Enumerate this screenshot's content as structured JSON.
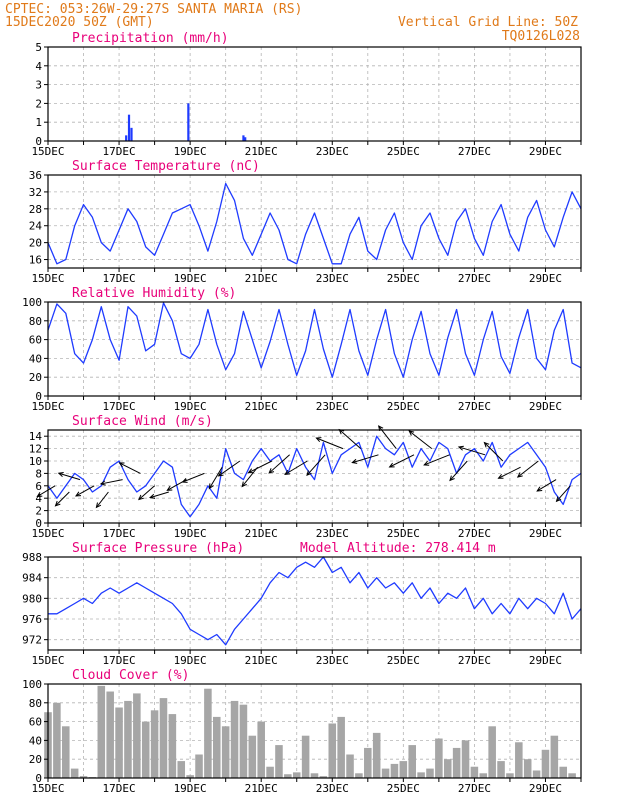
{
  "header": {
    "line1_left": "CPTEC:   053:26W-29:27S   SANTA MARIA (RS)",
    "line2_left": "15DEC2020 50Z (GMT)",
    "line1_right": "Vertical Grid Line: 50Z",
    "line2_right": "TQ0126L028"
  },
  "colors": {
    "header_text": "#e07a1a",
    "panel_title": "#e8007a",
    "series_line": "#1f3bff",
    "precip_bar": "#1f3bff",
    "cloud_bar": "#a6a6a6",
    "wind_arrow": "#000000",
    "grid": "#b5b5b5"
  },
  "x_axis": {
    "start_day": 15,
    "end_day": 30,
    "ticks": [
      "15DEC",
      "17DEC",
      "19DEC",
      "21DEC",
      "23DEC",
      "25DEC",
      "27DEC",
      "29DEC"
    ],
    "tick_days": [
      15,
      17,
      19,
      21,
      23,
      25,
      27,
      29
    ]
  },
  "chart_data": [
    {
      "id": "precip",
      "type": "bar",
      "title": "Precipitation (mm/h)",
      "ylim": [
        0,
        5
      ],
      "yticks": [
        0,
        1,
        2,
        3,
        4,
        5
      ],
      "grid": true,
      "x": [
        17.2,
        17.28,
        17.35,
        18.95,
        20.5,
        20.55
      ],
      "values": [
        0.3,
        1.4,
        0.7,
        2.0,
        0.3,
        0.2
      ]
    },
    {
      "id": "temp",
      "type": "line",
      "title": "Surface Temperature (nC)",
      "ylim": [
        14,
        36
      ],
      "yticks": [
        16,
        20,
        24,
        28,
        32,
        36
      ],
      "grid": true,
      "x": [
        15.0,
        15.25,
        15.5,
        15.75,
        16.0,
        16.25,
        16.5,
        16.75,
        17.0,
        17.25,
        17.5,
        17.75,
        18.0,
        18.25,
        18.5,
        18.75,
        19.0,
        19.25,
        19.5,
        19.75,
        20.0,
        20.25,
        20.5,
        20.75,
        21.0,
        21.25,
        21.5,
        21.75,
        22.0,
        22.25,
        22.5,
        22.75,
        23.0,
        23.25,
        23.5,
        23.75,
        24.0,
        24.25,
        24.5,
        24.75,
        25.0,
        25.25,
        25.5,
        25.75,
        26.0,
        26.25,
        26.5,
        26.75,
        27.0,
        27.25,
        27.5,
        27.75,
        28.0,
        28.25,
        28.5,
        28.75,
        29.0,
        29.25,
        29.5,
        29.75,
        30.0
      ],
      "values": [
        20,
        15,
        16,
        24,
        29,
        26,
        20,
        18,
        23,
        28,
        25,
        19,
        17,
        22,
        27,
        28,
        29,
        24,
        18,
        25,
        34,
        30,
        21,
        17,
        22,
        27,
        23,
        16,
        15,
        22,
        27,
        21,
        15,
        15,
        22,
        26,
        18,
        16,
        23,
        27,
        20,
        16,
        24,
        27,
        21,
        17,
        25,
        28,
        21,
        17,
        25,
        29,
        22,
        18,
        26,
        30,
        23,
        19,
        26,
        32,
        28
      ]
    },
    {
      "id": "rh",
      "type": "line",
      "title": "Relative Humidity (%)",
      "ylim": [
        0,
        100
      ],
      "yticks": [
        0,
        20,
        40,
        60,
        80,
        100
      ],
      "grid": true,
      "x": [
        15.0,
        15.25,
        15.5,
        15.75,
        16.0,
        16.25,
        16.5,
        16.75,
        17.0,
        17.25,
        17.5,
        17.75,
        18.0,
        18.25,
        18.5,
        18.75,
        19.0,
        19.25,
        19.5,
        19.75,
        20.0,
        20.25,
        20.5,
        20.75,
        21.0,
        21.25,
        21.5,
        21.75,
        22.0,
        22.25,
        22.5,
        22.75,
        23.0,
        23.25,
        23.5,
        23.75,
        24.0,
        24.25,
        24.5,
        24.75,
        25.0,
        25.25,
        25.5,
        25.75,
        26.0,
        26.25,
        26.5,
        26.75,
        27.0,
        27.25,
        27.5,
        27.75,
        28.0,
        28.25,
        28.5,
        28.75,
        29.0,
        29.25,
        29.5,
        29.75,
        30.0
      ],
      "values": [
        70,
        98,
        88,
        45,
        35,
        60,
        95,
        60,
        38,
        95,
        85,
        48,
        55,
        99,
        80,
        45,
        40,
        55,
        92,
        55,
        28,
        45,
        90,
        60,
        30,
        58,
        92,
        55,
        22,
        48,
        92,
        50,
        20,
        55,
        92,
        48,
        22,
        60,
        92,
        45,
        20,
        60,
        90,
        45,
        22,
        62,
        92,
        45,
        22,
        60,
        90,
        42,
        24,
        62,
        92,
        40,
        28,
        70,
        92,
        35,
        30
      ]
    },
    {
      "id": "wind",
      "type": "line",
      "title": "Surface Wind (m/s)",
      "ylim": [
        0,
        15
      ],
      "yticks": [
        0,
        2,
        4,
        6,
        8,
        10,
        12,
        14
      ],
      "grid": true,
      "x": [
        15.0,
        15.25,
        15.5,
        15.75,
        16.0,
        16.25,
        16.5,
        16.75,
        17.0,
        17.25,
        17.5,
        17.75,
        18.0,
        18.25,
        18.5,
        18.75,
        19.0,
        19.25,
        19.5,
        19.75,
        20.0,
        20.25,
        20.5,
        20.75,
        21.0,
        21.25,
        21.5,
        21.75,
        22.0,
        22.25,
        22.5,
        22.75,
        23.0,
        23.25,
        23.5,
        23.75,
        24.0,
        24.25,
        24.5,
        24.75,
        25.0,
        25.25,
        25.5,
        25.75,
        26.0,
        26.25,
        26.5,
        26.75,
        27.0,
        27.25,
        27.5,
        27.75,
        28.0,
        28.25,
        28.5,
        28.75,
        29.0,
        29.25,
        29.5,
        29.75,
        30.0
      ],
      "values": [
        6,
        4,
        6,
        8,
        7,
        5,
        6,
        9,
        10,
        7,
        5,
        6,
        8,
        10,
        9,
        3,
        1,
        3,
        6,
        4,
        12,
        8,
        7,
        10,
        12,
        10,
        11,
        8,
        12,
        9,
        7,
        13,
        8,
        11,
        12,
        13,
        9,
        14,
        12,
        11,
        13,
        9,
        12,
        10,
        13,
        12,
        8,
        11,
        12,
        10,
        13,
        9,
        11,
        12,
        13,
        11,
        9,
        5,
        3,
        7,
        8
      ],
      "arrows": [
        {
          "day": 15.2,
          "speed": 6,
          "dx": -1,
          "dy": 0.6
        },
        {
          "day": 15.6,
          "speed": 5,
          "dx": -0.8,
          "dy": 0.8
        },
        {
          "day": 15.9,
          "speed": 7,
          "dx": -1,
          "dy": -0.3
        },
        {
          "day": 16.3,
          "speed": 6,
          "dx": -0.9,
          "dy": 0.5
        },
        {
          "day": 16.7,
          "speed": 5,
          "dx": -0.7,
          "dy": 0.9
        },
        {
          "day": 17.1,
          "speed": 7,
          "dx": -1,
          "dy": 0.2
        },
        {
          "day": 17.6,
          "speed": 8,
          "dx": -1,
          "dy": -0.5
        },
        {
          "day": 18.0,
          "speed": 6,
          "dx": -0.8,
          "dy": 0.7
        },
        {
          "day": 18.4,
          "speed": 5,
          "dx": -1,
          "dy": 0.3
        },
        {
          "day": 18.9,
          "speed": 7,
          "dx": -0.9,
          "dy": 0.5
        },
        {
          "day": 19.4,
          "speed": 8,
          "dx": -1,
          "dy": 0.4
        },
        {
          "day": 19.9,
          "speed": 9,
          "dx": -0.6,
          "dy": 1
        },
        {
          "day": 20.4,
          "speed": 10,
          "dx": -1,
          "dy": 0.7
        },
        {
          "day": 20.9,
          "speed": 9,
          "dx": -0.8,
          "dy": 1
        },
        {
          "day": 21.3,
          "speed": 10,
          "dx": -1,
          "dy": 0.5
        },
        {
          "day": 21.8,
          "speed": 11,
          "dx": -0.9,
          "dy": 0.8
        },
        {
          "day": 22.3,
          "speed": 10,
          "dx": -1,
          "dy": 0.6
        },
        {
          "day": 22.8,
          "speed": 11,
          "dx": -0.8,
          "dy": 0.9
        },
        {
          "day": 23.3,
          "speed": 12,
          "dx": -1,
          "dy": -0.4
        },
        {
          "day": 23.8,
          "speed": 12,
          "dx": -0.9,
          "dy": -0.8
        },
        {
          "day": 24.3,
          "speed": 11,
          "dx": -1,
          "dy": 0.3
        },
        {
          "day": 24.8,
          "speed": 12,
          "dx": -0.7,
          "dy": -0.9
        },
        {
          "day": 25.3,
          "speed": 11,
          "dx": -1,
          "dy": 0.5
        },
        {
          "day": 25.8,
          "speed": 12,
          "dx": -0.9,
          "dy": -0.7
        },
        {
          "day": 26.3,
          "speed": 11,
          "dx": -1,
          "dy": 0.4
        },
        {
          "day": 26.8,
          "speed": 10,
          "dx": -0.8,
          "dy": 0.9
        },
        {
          "day": 27.3,
          "speed": 11,
          "dx": -1,
          "dy": -0.3
        },
        {
          "day": 27.8,
          "speed": 10,
          "dx": -0.8,
          "dy": -0.8
        },
        {
          "day": 28.3,
          "speed": 9,
          "dx": -1,
          "dy": 0.5
        },
        {
          "day": 28.8,
          "speed": 10,
          "dx": -0.9,
          "dy": 0.7
        },
        {
          "day": 29.3,
          "speed": 7,
          "dx": -1,
          "dy": 0.6
        },
        {
          "day": 29.7,
          "speed": 6,
          "dx": -0.8,
          "dy": 0.9
        }
      ]
    },
    {
      "id": "pressure",
      "type": "line",
      "title": "Surface Pressure (hPa)",
      "subtitle": "Model Altitude: 278.414 m",
      "ylim": [
        970,
        988
      ],
      "yticks": [
        972,
        976,
        980,
        984,
        988
      ],
      "grid": true,
      "x": [
        15.0,
        15.25,
        15.5,
        15.75,
        16.0,
        16.25,
        16.5,
        16.75,
        17.0,
        17.25,
        17.5,
        17.75,
        18.0,
        18.25,
        18.5,
        18.75,
        19.0,
        19.25,
        19.5,
        19.75,
        20.0,
        20.25,
        20.5,
        20.75,
        21.0,
        21.25,
        21.5,
        21.75,
        22.0,
        22.25,
        22.5,
        22.75,
        23.0,
        23.25,
        23.5,
        23.75,
        24.0,
        24.25,
        24.5,
        24.75,
        25.0,
        25.25,
        25.5,
        25.75,
        26.0,
        26.25,
        26.5,
        26.75,
        27.0,
        27.25,
        27.5,
        27.75,
        28.0,
        28.25,
        28.5,
        28.75,
        29.0,
        29.25,
        29.5,
        29.75,
        30.0
      ],
      "values": [
        977,
        977,
        978,
        979,
        980,
        979,
        981,
        982,
        981,
        982,
        983,
        982,
        981,
        980,
        979,
        977,
        974,
        973,
        972,
        973,
        971,
        974,
        976,
        978,
        980,
        983,
        985,
        984,
        986,
        987,
        986,
        988,
        985,
        986,
        983,
        985,
        982,
        984,
        982,
        983,
        981,
        983,
        980,
        982,
        979,
        981,
        980,
        982,
        978,
        980,
        977,
        979,
        977,
        980,
        978,
        980,
        979,
        977,
        981,
        976,
        978
      ]
    },
    {
      "id": "cloud",
      "type": "bar",
      "title": "Cloud Cover (%)",
      "ylim": [
        0,
        100
      ],
      "yticks": [
        0,
        20,
        40,
        60,
        80,
        100
      ],
      "grid": true,
      "x": [
        15.0,
        15.25,
        15.5,
        15.75,
        16.0,
        16.25,
        16.5,
        16.75,
        17.0,
        17.25,
        17.5,
        17.75,
        18.0,
        18.25,
        18.5,
        18.75,
        19.0,
        19.25,
        19.5,
        19.75,
        20.0,
        20.25,
        20.5,
        20.75,
        21.0,
        21.25,
        21.5,
        21.75,
        22.0,
        22.25,
        22.5,
        22.75,
        23.0,
        23.25,
        23.5,
        23.75,
        24.0,
        24.25,
        24.5,
        24.75,
        25.0,
        25.25,
        25.5,
        25.75,
        26.0,
        26.25,
        26.5,
        26.75,
        27.0,
        27.25,
        27.5,
        27.75,
        28.0,
        28.25,
        28.5,
        28.75,
        29.0,
        29.25,
        29.5,
        29.75,
        30.0
      ],
      "values": [
        70,
        80,
        55,
        10,
        2,
        1,
        98,
        92,
        75,
        82,
        90,
        60,
        72,
        85,
        68,
        18,
        3,
        25,
        95,
        65,
        55,
        82,
        78,
        45,
        60,
        12,
        35,
        4,
        6,
        45,
        5,
        2,
        58,
        65,
        25,
        5,
        32,
        48,
        10,
        15,
        18,
        35,
        6,
        10,
        42,
        20,
        32,
        40,
        12,
        5,
        55,
        18,
        5,
        38,
        20,
        8,
        30,
        45,
        12,
        5,
        0
      ]
    }
  ]
}
